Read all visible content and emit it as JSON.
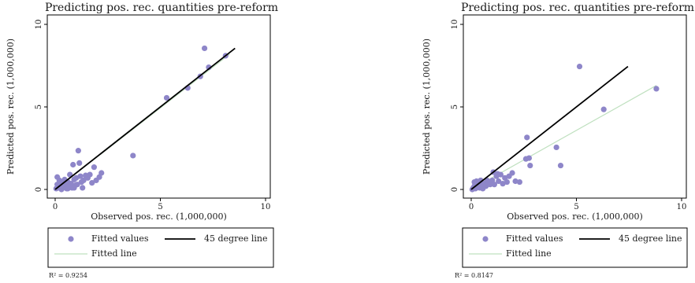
{
  "chart_data": [
    {
      "type": "scatter",
      "title": "Predicting pos. rec. quantities pre-reform",
      "xlabel": "Observed pos. rec. (1,000,000)",
      "ylabel": "Predicted pos. rec. (1,000,000)",
      "xlim": [
        0,
        10
      ],
      "ylim": [
        0,
        10
      ],
      "xticks": [
        "0",
        "5",
        "10"
      ],
      "yticks": [
        "0",
        "5",
        "10"
      ],
      "grid": false,
      "legend": {
        "placement": "bottom",
        "entries": [
          "Fitted values",
          "45 degree line",
          "Fitted line"
        ]
      },
      "r2": "R² = 0.9254",
      "series": [
        {
          "name": "Fitted values",
          "kind": "points",
          "color": "#8e86c9",
          "points": [
            [
              0.05,
              0.05
            ],
            [
              0.1,
              0.3
            ],
            [
              0.15,
              0.1
            ],
            [
              0.2,
              0.55
            ],
            [
              0.25,
              0.2
            ],
            [
              0.3,
              0.0
            ],
            [
              0.3,
              0.4
            ],
            [
              0.4,
              0.15
            ],
            [
              0.45,
              0.6
            ],
            [
              0.5,
              0.3
            ],
            [
              0.55,
              0.05
            ],
            [
              0.6,
              0.45
            ],
            [
              0.65,
              0.2
            ],
            [
              0.7,
              0.9
            ],
            [
              0.75,
              0.35
            ],
            [
              0.8,
              0.1
            ],
            [
              0.85,
              1.5
            ],
            [
              0.9,
              0.6
            ],
            [
              0.95,
              0.25
            ],
            [
              1.0,
              0.7
            ],
            [
              1.05,
              0.3
            ],
            [
              1.1,
              2.35
            ],
            [
              1.15,
              1.6
            ],
            [
              1.2,
              0.8
            ],
            [
              1.25,
              0.45
            ],
            [
              1.3,
              0.1
            ],
            [
              1.35,
              0.55
            ],
            [
              1.45,
              0.85
            ],
            [
              1.55,
              0.7
            ],
            [
              1.65,
              0.9
            ],
            [
              1.75,
              0.4
            ],
            [
              1.85,
              1.35
            ],
            [
              1.95,
              0.55
            ],
            [
              2.1,
              0.75
            ],
            [
              2.2,
              1.0
            ],
            [
              0.1,
              0.75
            ],
            [
              0.2,
              0.25
            ],
            [
              0.35,
              0.3
            ],
            [
              0.6,
              0.05
            ],
            [
              0.9,
              0.1
            ],
            [
              3.7,
              2.05
            ],
            [
              5.3,
              5.55
            ],
            [
              6.3,
              6.15
            ],
            [
              6.9,
              6.85
            ],
            [
              7.1,
              8.55
            ],
            [
              7.3,
              7.4
            ],
            [
              8.1,
              8.1
            ]
          ]
        },
        {
          "name": "45 degree line",
          "kind": "line",
          "color": "#000000",
          "points": [
            [
              0,
              0
            ],
            [
              8.55,
              8.55
            ]
          ]
        },
        {
          "name": "Fitted line",
          "kind": "line",
          "color": "#bfe0bf",
          "points": [
            [
              0,
              0
            ],
            [
              8.3,
              8.2
            ]
          ]
        }
      ]
    },
    {
      "type": "scatter",
      "title": "Predicting pos. rec. quantities pre-reform",
      "xlabel": "Observed pos. rec. (1,000,000)",
      "ylabel": "Predicted pos. rec. (1,000,000)",
      "xlim": [
        0,
        10
      ],
      "ylim": [
        0,
        10
      ],
      "xticks": [
        "0",
        "5",
        "10"
      ],
      "yticks": [
        "0",
        "5",
        "10"
      ],
      "grid": false,
      "legend": {
        "placement": "bottom",
        "entries": [
          "Fitted values",
          "45 degree line",
          "Fitted line"
        ]
      },
      "r2": "R² = 0.8147",
      "series": [
        {
          "name": "Fitted values",
          "kind": "points",
          "color": "#8e86c9",
          "points": [
            [
              0.05,
              0.0
            ],
            [
              0.1,
              0.1
            ],
            [
              0.15,
              0.2
            ],
            [
              0.2,
              0.05
            ],
            [
              0.25,
              0.3
            ],
            [
              0.3,
              0.15
            ],
            [
              0.35,
              0.4
            ],
            [
              0.4,
              0.1
            ],
            [
              0.5,
              0.25
            ],
            [
              0.55,
              0.05
            ],
            [
              0.6,
              0.35
            ],
            [
              0.7,
              0.2
            ],
            [
              0.8,
              0.4
            ],
            [
              0.9,
              0.3
            ],
            [
              1.0,
              0.55
            ],
            [
              1.1,
              0.3
            ],
            [
              1.2,
              0.8
            ],
            [
              1.3,
              0.5
            ],
            [
              1.4,
              0.9
            ],
            [
              1.5,
              0.35
            ],
            [
              1.6,
              0.7
            ],
            [
              1.7,
              0.45
            ],
            [
              1.8,
              0.8
            ],
            [
              1.95,
              1.0
            ],
            [
              2.1,
              0.5
            ],
            [
              2.3,
              0.45
            ],
            [
              0.15,
              0.45
            ],
            [
              0.25,
              0.5
            ],
            [
              0.45,
              0.55
            ],
            [
              0.75,
              0.55
            ],
            [
              1.05,
              1.05
            ],
            [
              1.25,
              0.95
            ],
            [
              2.6,
              1.85
            ],
            [
              2.65,
              3.15
            ],
            [
              2.8,
              1.45
            ],
            [
              2.75,
              1.9
            ],
            [
              4.05,
              2.55
            ],
            [
              4.25,
              1.45
            ],
            [
              5.15,
              7.45
            ],
            [
              6.3,
              4.85
            ],
            [
              8.8,
              6.1
            ]
          ]
        },
        {
          "name": "45 degree line",
          "kind": "line",
          "color": "#000000",
          "points": [
            [
              0,
              0
            ],
            [
              7.45,
              7.45
            ]
          ]
        },
        {
          "name": "Fitted line",
          "kind": "line",
          "color": "#bfe0bf",
          "points": [
            [
              0,
              0
            ],
            [
              8.8,
              6.3
            ]
          ]
        }
      ]
    }
  ]
}
